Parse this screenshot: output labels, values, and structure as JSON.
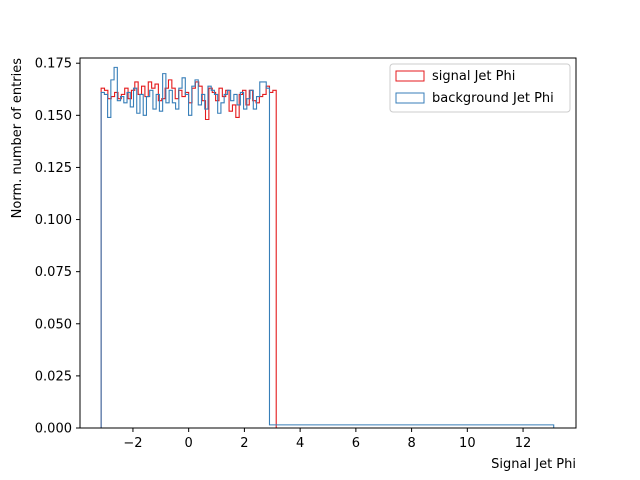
{
  "chart_data": {
    "type": "histogram-step",
    "title": "",
    "xlabel": "Signal Jet Phi",
    "ylabel": "Norm. number of entries",
    "xlim": [
      -3.9,
      13.9
    ],
    "ylim": [
      0.0,
      0.1775
    ],
    "xticks": [
      -2,
      0,
      2,
      4,
      6,
      8,
      10,
      12
    ],
    "yticks": [
      0.0,
      0.025,
      0.05,
      0.075,
      0.1,
      0.125,
      0.15,
      0.175
    ],
    "ytick_labels": [
      "0.000",
      "0.025",
      "0.050",
      "0.075",
      "0.100",
      "0.125",
      "0.150",
      "0.175"
    ],
    "xtick_labels": [
      "−2",
      "0",
      "2",
      "4",
      "6",
      "8",
      "10",
      "12"
    ],
    "grid": false,
    "legend_position": "top-right",
    "series": [
      {
        "name": "signal Jet Phi",
        "color": "#e41a1c",
        "x_start": -3.1416,
        "x_end": 3.1416,
        "values": [
          0.163,
          0.162,
          0.158,
          0.159,
          0.161,
          0.158,
          0.16,
          0.163,
          0.158,
          0.162,
          0.166,
          0.16,
          0.164,
          0.159,
          0.166,
          0.163,
          0.165,
          0.157,
          0.158,
          0.163,
          0.167,
          0.163,
          0.158,
          0.162,
          0.159,
          0.161,
          0.156,
          0.163,
          0.166,
          0.164,
          0.157,
          0.148,
          0.163,
          0.161,
          0.157,
          0.163,
          0.159,
          0.162,
          0.152,
          0.155,
          0.149,
          0.16,
          0.162,
          0.155,
          0.162,
          0.157,
          0.156,
          0.159,
          0.16,
          0.164,
          0.161,
          0.162
        ]
      },
      {
        "name": "background Jet Phi",
        "color": "#377eb8",
        "x_start": -3.1416,
        "x_end": 13.1,
        "values": [
          0.161,
          0.16,
          0.149,
          0.167,
          0.173,
          0.157,
          0.159,
          0.156,
          0.161,
          0.154,
          0.163,
          0.151,
          0.16,
          0.15,
          0.159,
          0.162,
          0.153,
          0.16,
          0.152,
          0.17,
          0.156,
          0.162,
          0.156,
          0.153,
          0.163,
          0.168,
          0.16,
          0.15,
          0.164,
          0.167,
          0.155,
          0.16,
          0.153,
          0.164,
          0.162,
          0.16,
          0.151,
          0.156,
          0.16,
          0.162,
          0.157,
          0.16,
          0.155,
          0.161,
          0.153,
          0.158,
          0.162,
          0.153,
          0.159,
          0.166,
          0.166,
          0.163
        ],
        "tail": {
          "x_from": 2.9,
          "value": 0.0015
        }
      }
    ]
  }
}
